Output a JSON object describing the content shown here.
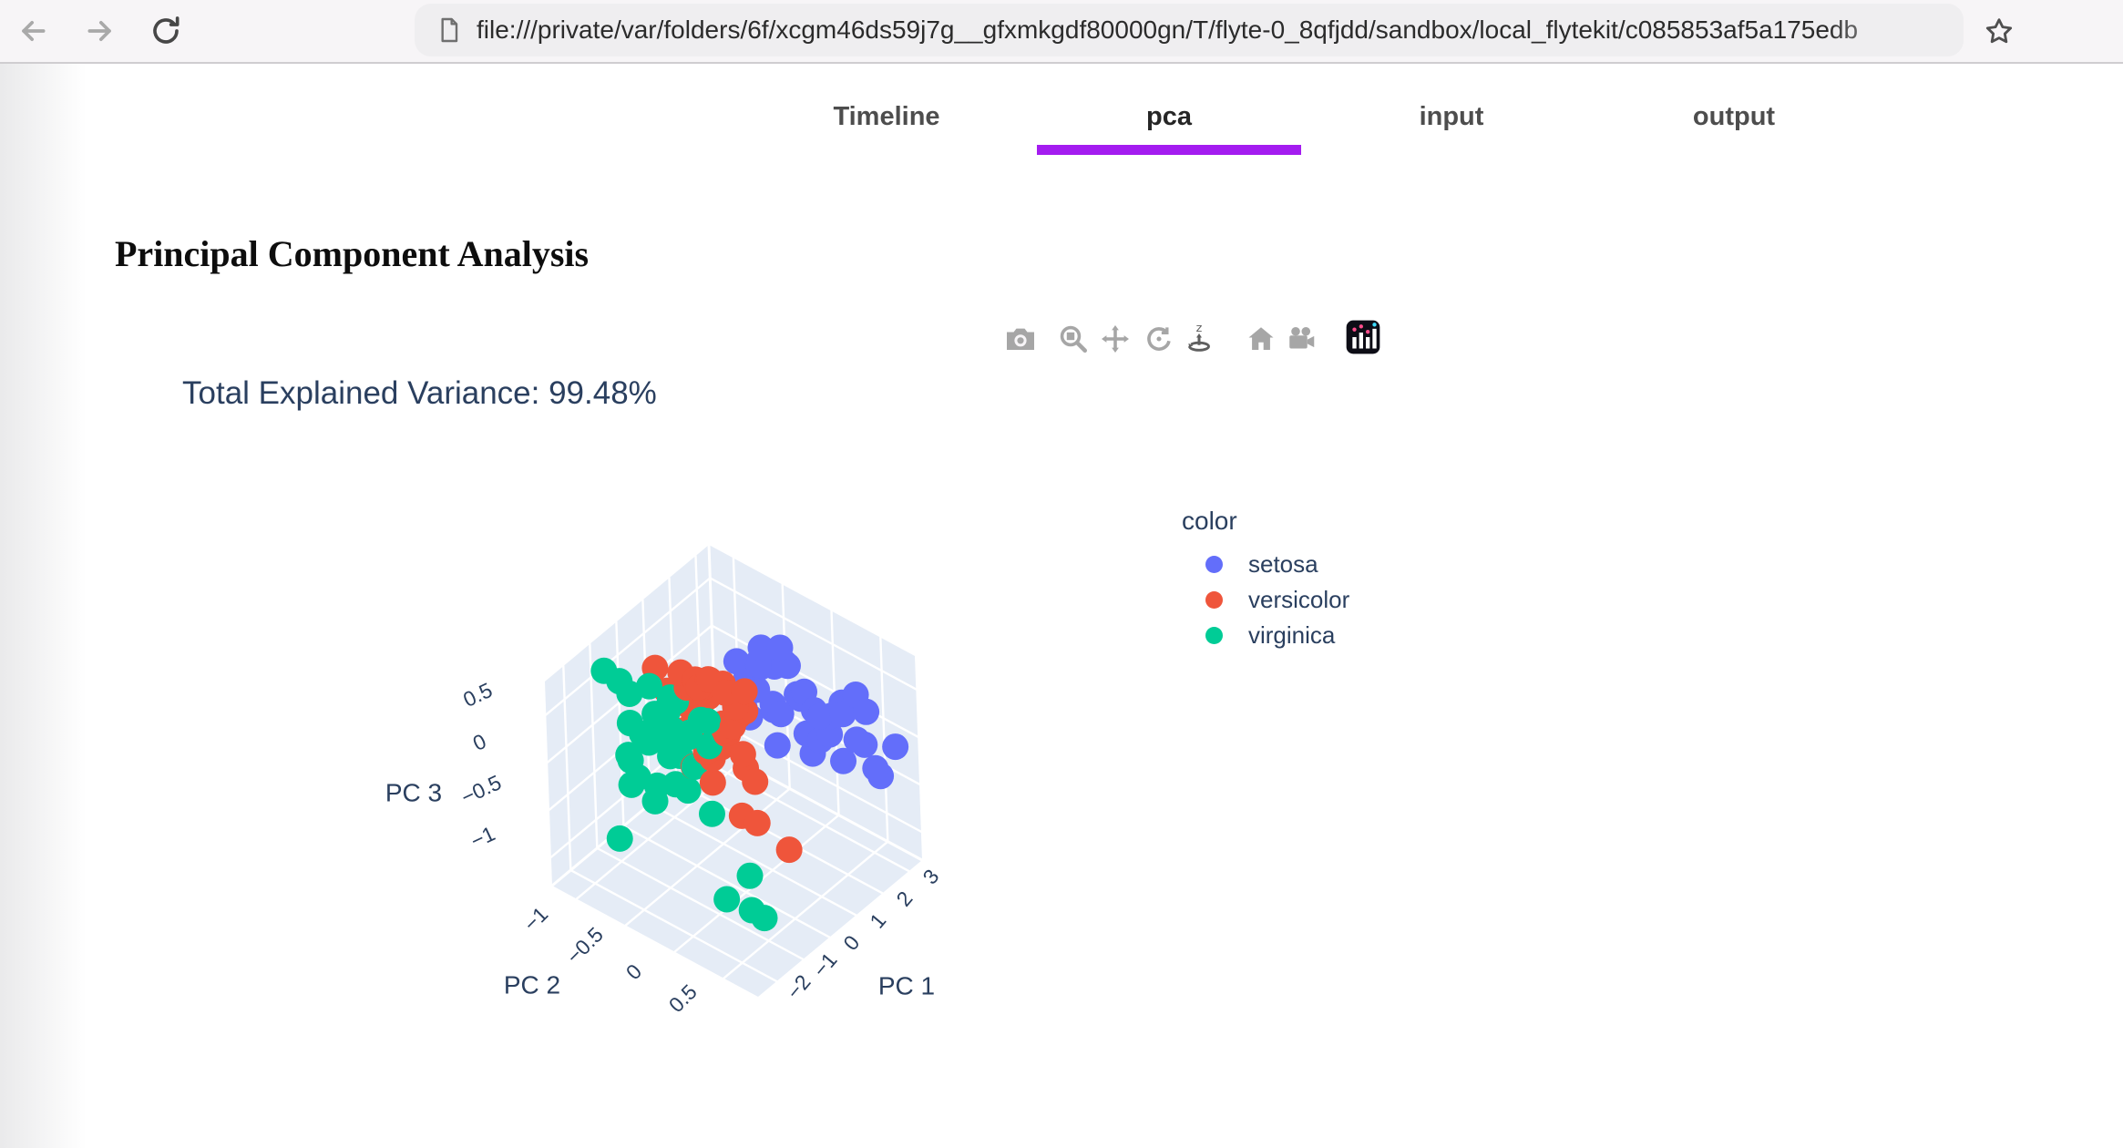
{
  "browser": {
    "url": "file:///private/var/folders/6f/xcgm46ds59j7g__gfxmkgdf80000gn/T/flyte-0_8qfjdd/sandbox/local_flytekit/c085853af5a175edb",
    "icons": [
      "back-arrow-icon",
      "forward-arrow-icon",
      "reload-icon",
      "page-document-icon",
      "bookmark-star-icon"
    ]
  },
  "tabs": {
    "items": [
      {
        "label": "Timeline",
        "active": false
      },
      {
        "label": "pca",
        "active": true
      },
      {
        "label": "input",
        "active": false
      },
      {
        "label": "output",
        "active": false
      }
    ],
    "active_underline_color": "#a41cf0"
  },
  "heading": "Principal Component Analysis",
  "modebar": {
    "buttons": [
      "camera-snapshot",
      "zoom",
      "pan",
      "orbit-rotation",
      "turntable-rotation",
      "reset-camera-home",
      "reset-camera-last-save",
      "plotly-logo"
    ]
  },
  "chart_data": {
    "type": "scatter",
    "subtype": "scatter3d",
    "title": "Total Explained Variance: 99.48%",
    "legend_title": "color",
    "grid": true,
    "legend_position": "right",
    "wall_color": "#e5ecf6",
    "grid_color": "#ffffff",
    "text_color": "#2a3f5f",
    "axes": {
      "x": {
        "label": "PC 1",
        "ticks": [
          -2,
          -1,
          0,
          1,
          2,
          3
        ],
        "range": [
          -2.7,
          3.5
        ]
      },
      "y": {
        "label": "PC 2",
        "ticks": [
          -1,
          -0.5,
          0,
          0.5
        ],
        "range": [
          -1.25,
          0.85
        ]
      },
      "z": {
        "label": "PC 3",
        "ticks": [
          -1,
          -0.5,
          0,
          0.5
        ],
        "range": [
          -1.3,
          0.85
        ]
      }
    },
    "series": [
      {
        "name": "setosa",
        "color": "#636efa",
        "points": [
          [
            2.62,
            -0.3,
            0.5
          ],
          [
            2.38,
            0.1,
            0.12
          ],
          [
            2.81,
            -0.45,
            -0.22
          ],
          [
            2.55,
            0.35,
            0.18
          ],
          [
            2.92,
            -0.15,
            0.05
          ],
          [
            2.31,
            -0.55,
            -0.3
          ],
          [
            2.7,
            0.55,
            0.28
          ],
          [
            2.48,
            -0.35,
            -0.15
          ],
          [
            3.05,
            0.2,
            0.1
          ],
          [
            2.6,
            -0.65,
            0.02
          ],
          [
            2.22,
            -0.2,
            -0.05
          ],
          [
            2.85,
            0.02,
            -0.35
          ],
          [
            2.52,
            -0.48,
            0.22
          ],
          [
            2.75,
            0.28,
            -0.4
          ],
          [
            2.4,
            0.15,
            0.08
          ],
          [
            3.18,
            -0.3,
            -0.12
          ],
          [
            2.66,
            -0.75,
            -0.25
          ],
          [
            2.35,
            -0.45,
            0.3
          ],
          [
            2.95,
            0.45,
            -0.18
          ],
          [
            2.58,
            -0.25,
            0.38
          ],
          [
            2.02,
            -0.52,
            -0.12
          ],
          [
            2.78,
            -0.58,
            0.15
          ],
          [
            2.45,
            0.05,
            -0.38
          ],
          [
            3.02,
            0.75,
            -0.05
          ],
          [
            2.68,
            -0.12,
            0.05
          ],
          [
            2.28,
            -0.62,
            -0.12
          ],
          [
            2.88,
            -0.3,
            0.25
          ],
          [
            2.5,
            -0.02,
            -0.22
          ],
          [
            3.1,
            -0.5,
            0.08
          ],
          [
            2.72,
            0.62,
            -0.28
          ],
          [
            2.42,
            -0.7,
            0.18
          ],
          [
            2.98,
            0.1,
            -0.08
          ],
          [
            2.33,
            -0.28,
            -0.45
          ],
          [
            2.8,
            -0.55,
            0.32
          ],
          [
            2.56,
            0.48,
            -0.02
          ],
          [
            3.22,
            0.3,
            0.2
          ],
          [
            2.25,
            -0.45,
            0.06
          ],
          [
            3.15,
            0.55,
            -0.5
          ],
          [
            2.47,
            -0.22,
            0.42
          ],
          [
            2.64,
            0.18,
            -0.15
          ]
        ]
      },
      {
        "name": "versicolor",
        "color": "#ef553b",
        "points": [
          [
            -0.12,
            -0.15,
            0.42
          ],
          [
            0.25,
            -0.32,
            0.22
          ],
          [
            -0.45,
            0.05,
            0.58
          ],
          [
            0.1,
            -0.48,
            0.65
          ],
          [
            -0.28,
            -0.22,
            0.05
          ],
          [
            0.48,
            -0.08,
            0.45
          ],
          [
            -0.62,
            -0.38,
            0.35
          ],
          [
            0.05,
            0.12,
            -0.08
          ],
          [
            -0.18,
            -0.55,
            0.75
          ],
          [
            0.35,
            -0.25,
            0.15
          ],
          [
            -0.52,
            -0.02,
            0.52
          ],
          [
            0.3,
            -0.1,
            -0.62
          ],
          [
            -0.08,
            -0.28,
            0.8
          ],
          [
            0.58,
            -0.18,
            0.32
          ],
          [
            -0.38,
            -0.62,
            0.18
          ],
          [
            0.02,
            -0.05,
            0.62
          ],
          [
            -0.7,
            -0.3,
            0.02
          ],
          [
            0.42,
            -0.5,
            0.48
          ],
          [
            -0.22,
            0.08,
            0.25
          ],
          [
            0.12,
            -0.35,
            0.72
          ],
          [
            -0.55,
            -0.15,
            -0.1
          ],
          [
            0.3,
            -0.65,
            0.38
          ],
          [
            -0.02,
            -0.2,
            0.12
          ],
          [
            0.65,
            -0.35,
            0.55
          ],
          [
            -0.32,
            -0.45,
            0.68
          ],
          [
            0.08,
            0.02,
            0.0
          ],
          [
            -0.48,
            -0.25,
            0.42
          ],
          [
            0.22,
            -0.58,
            0.28
          ],
          [
            -0.15,
            -0.1,
            0.78
          ],
          [
            0.52,
            -0.28,
            0.08
          ],
          [
            -0.65,
            -0.48,
            0.6
          ],
          [
            0.15,
            0.1,
            -0.55
          ],
          [
            -0.25,
            -0.68,
            0.5
          ],
          [
            0.38,
            -0.05,
            0.7
          ],
          [
            -0.58,
            -0.2,
            0.2
          ],
          [
            0.0,
            -0.4,
            0.32
          ],
          [
            -0.35,
            -0.32,
            0.76
          ],
          [
            0.4,
            0.35,
            -0.75
          ],
          [
            -0.05,
            -0.85,
            0.6
          ],
          [
            0.45,
            -0.45,
            0.4
          ]
        ]
      },
      {
        "name": "virginica",
        "color": "#00cc96",
        "points": [
          [
            -1.32,
            -0.28,
            0.45
          ],
          [
            -0.95,
            -0.45,
            0.72
          ],
          [
            -1.65,
            -0.1,
            0.1
          ],
          [
            -1.1,
            -0.62,
            0.78
          ],
          [
            -1.48,
            -0.32,
            0.3
          ],
          [
            -0.8,
            -0.18,
            0.6
          ],
          [
            -1.85,
            -0.5,
            0.52
          ],
          [
            -1.22,
            0.02,
            -0.18
          ],
          [
            -1.55,
            -0.7,
            0.76
          ],
          [
            -1.02,
            -0.35,
            0.18
          ],
          [
            -1.7,
            -0.22,
            0.68
          ],
          [
            -1.28,
            -0.55,
            -0.35
          ],
          [
            -0.88,
            -0.08,
            0.4
          ],
          [
            -2.05,
            -0.4,
            0.62
          ],
          [
            -1.42,
            -0.75,
            0.0
          ],
          [
            -1.4,
            -1.0,
            0.8
          ],
          [
            -1.92,
            -0.15,
            0.2
          ],
          [
            -1.35,
            -0.48,
            0.55
          ],
          [
            -1.05,
            0.35,
            -1.05
          ],
          [
            -1.6,
            -0.3,
            0.8
          ],
          [
            -1.25,
            0.15,
            -1.0
          ],
          [
            -2.2,
            -0.55,
            0.35
          ],
          [
            -0.92,
            -0.4,
            0.7
          ],
          [
            -1.52,
            -0.65,
            -0.1
          ],
          [
            -1.18,
            -0.2,
            0.5
          ],
          [
            -1.78,
            -0.38,
            0.78
          ],
          [
            -1.08,
            -0.58,
            -0.25
          ],
          [
            -1.45,
            -0.12,
            0.65
          ],
          [
            -2.45,
            -0.6,
            -0.5
          ],
          [
            -1.2,
            -0.9,
            0.7
          ],
          [
            -0.85,
            -0.25,
            0.08
          ],
          [
            -1.68,
            -0.48,
            0.4
          ],
          [
            -1.12,
            -0.02,
            0.75
          ],
          [
            -1.95,
            -0.6,
            -0.05
          ],
          [
            -1.38,
            -0.35,
            0.78
          ],
          [
            -0.95,
            0.45,
            -1.1
          ],
          [
            -1.58,
            -0.18,
            0.58
          ],
          [
            -1.22,
            -0.8,
            0.32
          ],
          [
            -2.1,
            -0.25,
            0.66
          ],
          [
            -0.9,
            0.3,
            -0.75
          ]
        ]
      }
    ]
  }
}
